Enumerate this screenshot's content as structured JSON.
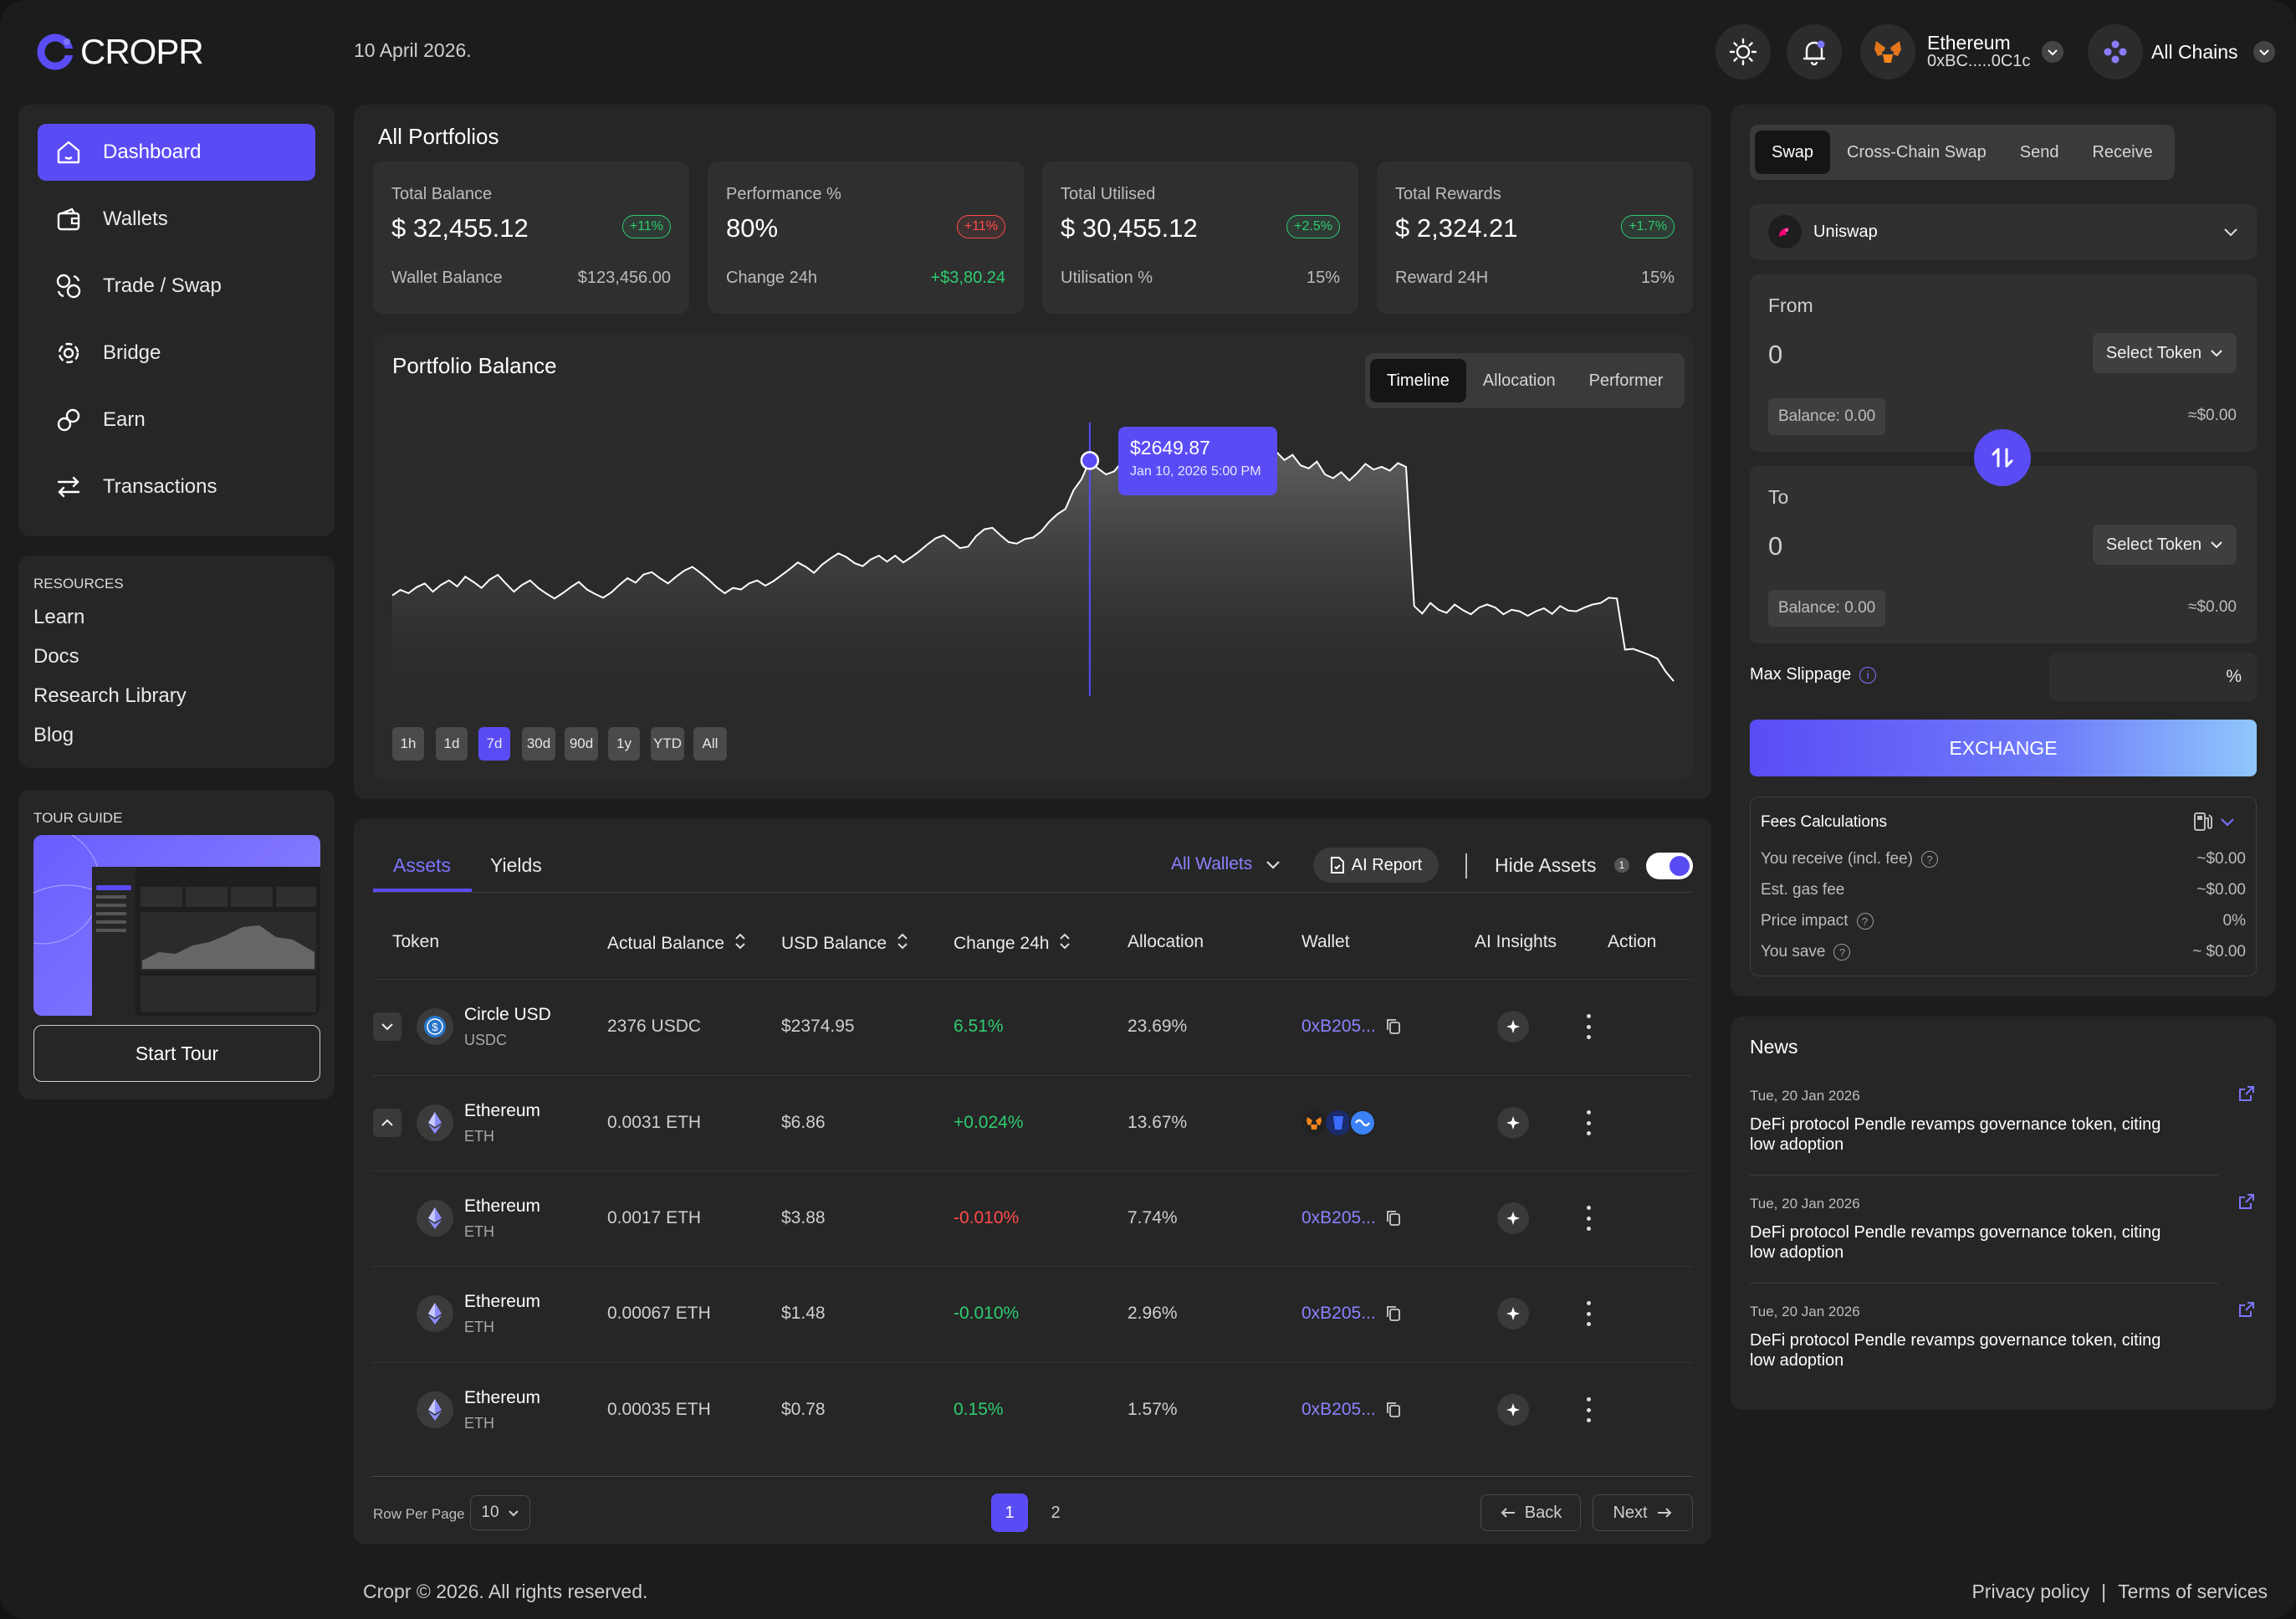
{
  "brand": {
    "name": "CROPR",
    "accent": "#5a4cf5"
  },
  "header": {
    "date": "10 April 2026.",
    "network": {
      "name": "Ethereum",
      "address": "0xBC.....0C1c"
    },
    "chains": "All Chains"
  },
  "sidebar": {
    "items": [
      {
        "label": "Dashboard",
        "icon": "home-icon"
      },
      {
        "label": "Wallets",
        "icon": "wallet-icon"
      },
      {
        "label": "Trade / Swap",
        "icon": "swap-icon"
      },
      {
        "label": "Bridge",
        "icon": "bridge-icon"
      },
      {
        "label": "Earn",
        "icon": "earn-icon"
      },
      {
        "label": "Transactions",
        "icon": "transfer-icon"
      }
    ],
    "resources": {
      "title": "RESOURCES",
      "links": [
        "Learn",
        "Docs",
        "Research Library",
        "Blog"
      ]
    },
    "tour": {
      "title": "TOUR GUIDE",
      "button": "Start Tour"
    }
  },
  "portfolios": {
    "title": "All Portfolios",
    "cards": [
      {
        "label": "Total Balance",
        "value": "$ 32,455.12",
        "badge": "+11%",
        "badge_status": "up",
        "sub_label": "Wallet Balance",
        "sub_value": "$123,456.00",
        "sub_status": "neutral"
      },
      {
        "label": "Performance %",
        "value": "80%",
        "badge": "+11%",
        "badge_status": "down",
        "sub_label": "Change 24h",
        "sub_value": "+$3,80.24",
        "sub_status": "up"
      },
      {
        "label": "Total Utilised",
        "value": "$ 30,455.12",
        "badge": "+2.5%",
        "badge_status": "up",
        "sub_label": "Utilisation %",
        "sub_value": "15%",
        "sub_status": "neutral"
      },
      {
        "label": "Total Rewards",
        "value": "$ 2,324.21",
        "badge": "+1.7%",
        "badge_status": "up",
        "sub_label": "Reward 24H",
        "sub_value": "15%",
        "sub_status": "neutral"
      }
    ]
  },
  "balance_chart": {
    "title": "Portfolio Balance",
    "tabs": [
      "Timeline",
      "Allocation",
      "Performer"
    ],
    "active_tab": "Timeline",
    "ranges": [
      "1h",
      "1d",
      "7d",
      "30d",
      "90d",
      "1y",
      "YTD",
      "All"
    ],
    "active_range": "7d",
    "tooltip": {
      "value": "$2649.87",
      "date": "Jan 10, 2026 5:00 PM"
    }
  },
  "chart_data": {
    "type": "area",
    "title": "Portfolio Balance",
    "highlight_index": 86,
    "highlight_value": 2649.87,
    "ylim": [
      2000,
      2750
    ],
    "values": [
      2290,
      2305,
      2296,
      2312,
      2322,
      2300,
      2318,
      2330,
      2314,
      2340,
      2326,
      2310,
      2332,
      2345,
      2322,
      2300,
      2318,
      2330,
      2310,
      2295,
      2282,
      2296,
      2312,
      2326,
      2306,
      2294,
      2284,
      2298,
      2318,
      2336,
      2324,
      2346,
      2352,
      2336,
      2322,
      2340,
      2356,
      2366,
      2350,
      2332,
      2312,
      2296,
      2310,
      2306,
      2322,
      2330,
      2316,
      2328,
      2344,
      2360,
      2378,
      2366,
      2350,
      2372,
      2388,
      2402,
      2392,
      2376,
      2368,
      2386,
      2396,
      2380,
      2396,
      2378,
      2392,
      2408,
      2426,
      2442,
      2450,
      2434,
      2416,
      2420,
      2448,
      2466,
      2470,
      2450,
      2432,
      2428,
      2440,
      2444,
      2460,
      2486,
      2506,
      2520,
      2570,
      2600,
      2649,
      2628,
      2612,
      2620,
      2646,
      2672,
      2665,
      2645,
      2652,
      2640,
      2662,
      2680,
      2672,
      2648,
      2664,
      2686,
      2678,
      2660,
      2671,
      2690,
      2705,
      2712,
      2695,
      2672,
      2650,
      2664,
      2636,
      2628,
      2646,
      2612,
      2602,
      2618,
      2596,
      2616,
      2640,
      2625,
      2632,
      2622,
      2642,
      2632,
      2262,
      2242,
      2270,
      2252,
      2244,
      2266,
      2251,
      2240,
      2258,
      2266,
      2258,
      2240,
      2252,
      2248,
      2236,
      2248,
      2256,
      2241,
      2262,
      2250,
      2248,
      2258,
      2266,
      2270,
      2284,
      2282,
      2146,
      2148,
      2140,
      2132,
      2122,
      2088,
      2062
    ]
  },
  "assets": {
    "tabs": [
      "Assets",
      "Yields"
    ],
    "active_tab": "Assets",
    "wallet_filter": "All Wallets",
    "ai_report": "AI Report",
    "hide_assets": "Hide Assets",
    "hide_assets_count": "1",
    "hide_assets_on": true,
    "columns": [
      "Token",
      "Actual Balance",
      "USD Balance",
      "Change 24h",
      "Allocation",
      "Wallet",
      "AI Insights",
      "Action"
    ],
    "rows": [
      {
        "name": "Circle USD",
        "symbol": "USDC",
        "balance": "2376 USDC",
        "usd": "$2374.95",
        "change": "6.51%",
        "change_status": "up",
        "allocation": "23.69%",
        "wallet": "0xB205...",
        "expander": "collapsed",
        "wallet_icons": false
      },
      {
        "name": "Ethereum",
        "symbol": "ETH",
        "balance": "0.0031 ETH",
        "usd": "$6.86",
        "change": "+0.024%",
        "change_status": "up",
        "allocation": "13.67%",
        "wallet": "",
        "expander": "expanded",
        "wallet_icons": true
      },
      {
        "name": "Ethereum",
        "symbol": "ETH",
        "balance": "0.0017 ETH",
        "usd": "$3.88",
        "change": "-0.010%",
        "change_status": "down",
        "allocation": "7.74%",
        "wallet": "0xB205...",
        "expander": "none",
        "wallet_icons": false
      },
      {
        "name": "Ethereum",
        "symbol": "ETH",
        "balance": "0.00067 ETH",
        "usd": "$1.48",
        "change": "-0.010%",
        "change_status": "up",
        "allocation": "2.96%",
        "wallet": "0xB205...",
        "expander": "none",
        "wallet_icons": false
      },
      {
        "name": "Ethereum",
        "symbol": "ETH",
        "balance": "0.00035 ETH",
        "usd": "$0.78",
        "change": "0.15%",
        "change_status": "up",
        "allocation": "1.57%",
        "wallet": "0xB205...",
        "expander": "none",
        "wallet_icons": false
      }
    ],
    "pagination": {
      "rows_label": "Row Per Page",
      "rows_value": "10",
      "pages": [
        "1",
        "2"
      ],
      "current": "1",
      "back": "Back",
      "next": "Next"
    }
  },
  "swap": {
    "tabs": [
      "Swap",
      "Cross-Chain Swap",
      "Send",
      "Receive"
    ],
    "active_tab": "Swap",
    "dex": "Uniswap",
    "from": {
      "label": "From",
      "amount": "0",
      "select": "Select Token",
      "balance": "Balance: 0.00",
      "usd": "≈$0.00"
    },
    "to": {
      "label": "To",
      "amount": "0",
      "select": "Select Token",
      "balance": "Balance: 0.00",
      "usd": "≈$0.00"
    },
    "slippage_label": "Max Slippage",
    "slippage_unit": "%",
    "exchange": "EXCHANGE",
    "fees": {
      "title": "Fees Calculations",
      "rows": [
        {
          "label": "You receive (incl. fee)",
          "value": "~$0.00"
        },
        {
          "label": "Est. gas fee",
          "value": "~$0.00"
        },
        {
          "label": "Price impact",
          "value": "0%"
        },
        {
          "label": "You save",
          "value": "~ $0.00"
        }
      ]
    }
  },
  "news": {
    "title": "News",
    "items": [
      {
        "date": "Tue, 20 Jan 2026",
        "text": "DeFi protocol Pendle revamps governance token, citing low adoption"
      },
      {
        "date": "Tue, 20 Jan 2026",
        "text": "DeFi protocol Pendle revamps governance token, citing low adoption"
      },
      {
        "date": "Tue, 20 Jan 2026",
        "text": "DeFi protocol Pendle revamps governance token, citing low adoption"
      }
    ]
  },
  "footer": {
    "copyright": "Cropr © 2026. All rights reserved.",
    "privacy": "Privacy policy",
    "sep": "|",
    "terms": "Terms of services"
  }
}
